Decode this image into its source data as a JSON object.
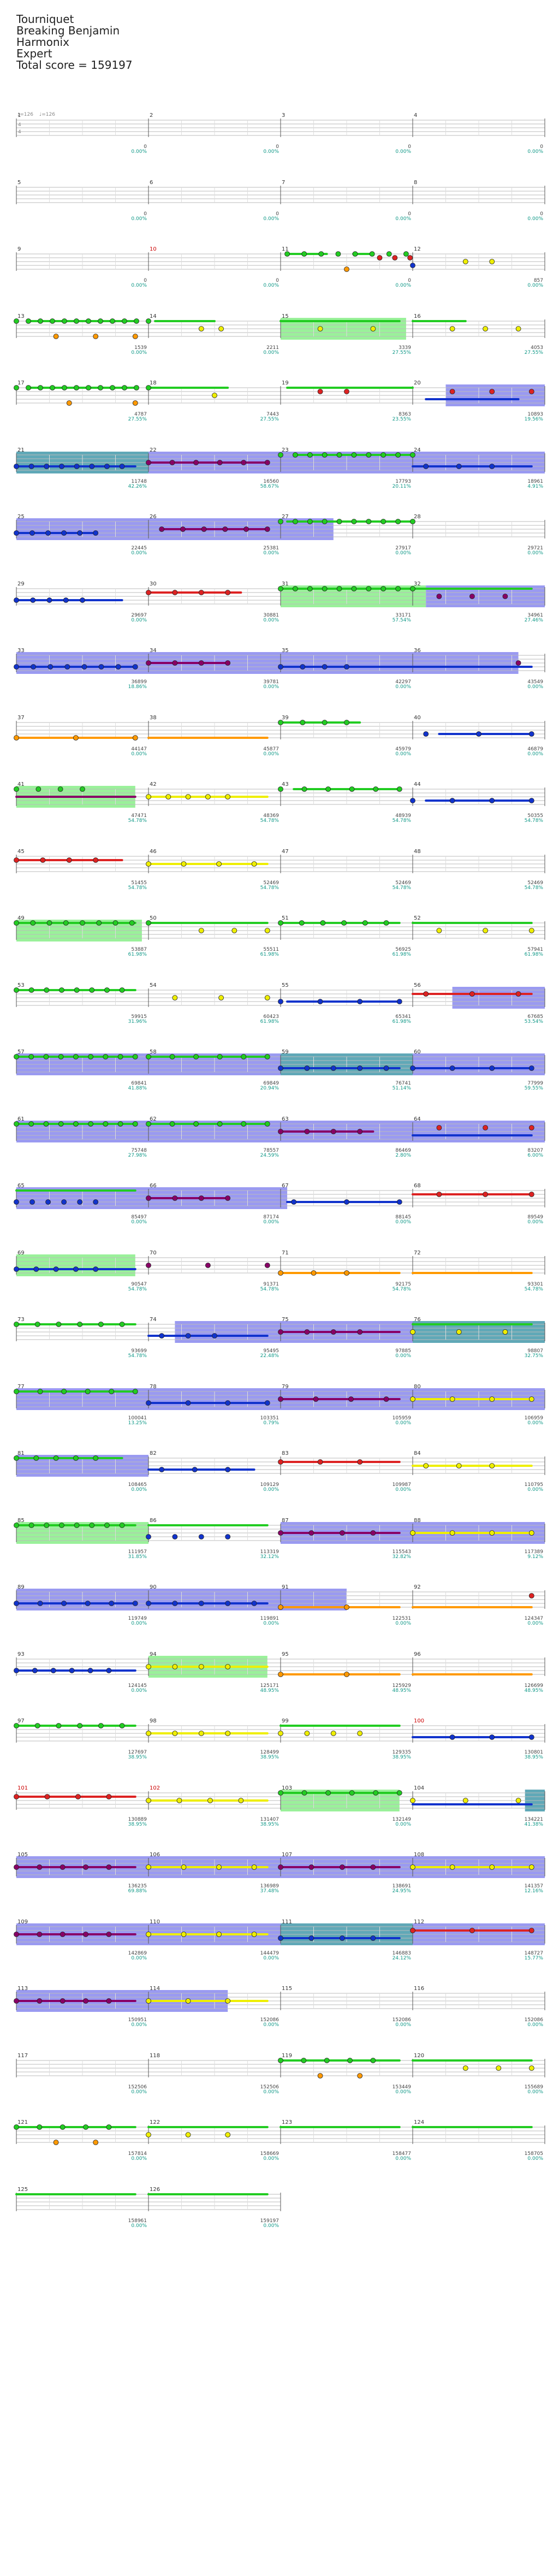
{
  "header": {
    "song_title": "Tourniquet",
    "artist": "Breaking Benjamin",
    "instrument": "Harmonix",
    "difficulty": "Expert",
    "total_score": "Total score = 159197"
  },
  "intro": {
    "time_sig_top": "4",
    "time_sig_bottom": "4",
    "tempo_1": "♩=126",
    "tempo_2": "♩=126"
  },
  "colors": {
    "green": "#22cc22",
    "red": "#dd2222",
    "yellow": "#eeee00",
    "blue": "#1133cc",
    "orange": "#ff9900",
    "purple": "#880066",
    "sp_blue": "#8888ee",
    "sp_green": "#88ee88",
    "sp_overlap": "#4499aa",
    "score_pct": "#119988"
  },
  "tracks": [
    {
      "m": [
        {
          "n": "1",
          "s": "0",
          "p": "0.00%"
        },
        {
          "n": "2",
          "s": "0",
          "p": "0.00%"
        },
        {
          "n": "3",
          "s": "0",
          "p": "0.00%"
        },
        {
          "n": "4",
          "s": "0",
          "p": "0.00%"
        }
      ],
      "end": "0",
      "pend": "0.00%"
    },
    {
      "m": [
        {
          "n": "5",
          "s": "0",
          "p": "0.00%"
        },
        {
          "n": "6",
          "s": "0",
          "p": "0.00%"
        },
        {
          "n": "7",
          "s": "0",
          "p": "0.00%"
        },
        {
          "n": "8",
          "s": "0",
          "p": "0.00%"
        }
      ],
      "end": "0",
      "pend": "0.00%"
    },
    {
      "m": [
        {
          "n": "9",
          "s": "0",
          "p": "0.00%"
        },
        {
          "n": "10",
          "s": "0",
          "p": "0.00%",
          "red": true
        },
        {
          "n": "11",
          "s": "0",
          "p": "0.00%"
        },
        {
          "n": "12",
          "s": "234",
          "p": "0.00%"
        }
      ],
      "end": "857",
      "pend": "0.00%"
    },
    {
      "m": [
        {
          "n": "13",
          "s": "1539",
          "p": "0.00%"
        },
        {
          "n": "14",
          "s": "2211",
          "p": "0.00%"
        },
        {
          "n": "15",
          "s": "3339",
          "p": "27.55%"
        },
        {
          "n": "16",
          "s": "4053",
          "p": "27.55%"
        }
      ],
      "end": "4053",
      "pend": "27.55%"
    },
    {
      "m": [
        {
          "n": "17",
          "s": "4787",
          "p": "27.55%"
        },
        {
          "n": "18",
          "s": "7443",
          "p": "27.55%"
        },
        {
          "n": "19",
          "s": "8363",
          "p": "23.55%"
        },
        {
          "n": "20",
          "s": "10893",
          "p": "19.56%"
        }
      ],
      "end": "10893",
      "pend": "19.56%"
    },
    {
      "m": [
        {
          "n": "21",
          "s": "11748",
          "p": "42.26%"
        },
        {
          "n": "22",
          "s": "16560",
          "p": "58.67%"
        },
        {
          "n": "23",
          "s": "17793",
          "p": "20.11%"
        },
        {
          "n": "24",
          "s": "18961",
          "p": "4.91%"
        }
      ],
      "end": "18961",
      "pend": "4.91%"
    },
    {
      "m": [
        {
          "n": "25",
          "s": "22445",
          "p": "0.00%"
        },
        {
          "n": "26",
          "s": "25381",
          "p": "0.00%"
        },
        {
          "n": "27",
          "s": "27917",
          "p": "0.00%"
        },
        {
          "n": "28",
          "s": "29721",
          "p": "0.00%"
        }
      ],
      "end": "29721",
      "pend": "0.00%"
    },
    {
      "m": [
        {
          "n": "29",
          "s": "29697",
          "p": "0.00%"
        },
        {
          "n": "30",
          "s": "30881",
          "p": "0.00%"
        },
        {
          "n": "31",
          "s": "33171",
          "p": "57.54%"
        },
        {
          "n": "32",
          "s": "34961",
          "p": "27.46%"
        }
      ],
      "end": "34961",
      "pend": "27.46%"
    },
    {
      "m": [
        {
          "n": "33",
          "s": "36899",
          "p": "18.86%"
        },
        {
          "n": "34",
          "s": "39781",
          "p": "0.00%"
        },
        {
          "n": "35",
          "s": "42297",
          "p": "0.00%"
        },
        {
          "n": "36",
          "s": "43549",
          "p": "0.00%"
        }
      ],
      "end": "43549",
      "pend": "0.00%"
    },
    {
      "m": [
        {
          "n": "37",
          "s": "44147",
          "p": "0.00%"
        },
        {
          "n": "38",
          "s": "45877",
          "p": "0.00%"
        },
        {
          "n": "39",
          "s": "45979",
          "p": "0.00%"
        },
        {
          "n": "40",
          "s": "46879",
          "p": "0.00%"
        }
      ],
      "end": "46879",
      "pend": "0.00%"
    },
    {
      "m": [
        {
          "n": "41",
          "s": "47471",
          "p": "54.78%"
        },
        {
          "n": "42",
          "s": "48369",
          "p": "54.78%"
        },
        {
          "n": "43",
          "s": "48939",
          "p": "54.78%"
        },
        {
          "n": "44",
          "s": "50355",
          "p": "54.78%"
        }
      ],
      "end": "50355",
      "pend": "54.78%"
    },
    {
      "m": [
        {
          "n": "45",
          "s": "51455",
          "p": "54.78%"
        },
        {
          "n": "46",
          "s": "52469",
          "p": "54.78%"
        },
        {
          "n": "47",
          "s": "52469",
          "p": "54.78%"
        },
        {
          "n": "48",
          "s": "52469",
          "p": "54.78%"
        }
      ],
      "end": "52469",
      "pend": "54.78%"
    },
    {
      "m": [
        {
          "n": "49",
          "s": "53887",
          "p": "61.98%"
        },
        {
          "n": "50",
          "s": "55511",
          "p": "61.98%"
        },
        {
          "n": "51",
          "s": "56925",
          "p": "61.98%"
        },
        {
          "n": "52",
          "s": "57941",
          "p": "61.98%"
        }
      ],
      "end": "57941",
      "pend": "61.98%"
    },
    {
      "m": [
        {
          "n": "53",
          "s": "59915",
          "p": "31.96%"
        },
        {
          "n": "54",
          "s": "60423",
          "p": "61.98%"
        },
        {
          "n": "55",
          "s": "65341",
          "p": "61.98%"
        },
        {
          "n": "56",
          "s": "67685",
          "p": "53.54%"
        }
      ],
      "end": "67685",
      "pend": "53.54%"
    },
    {
      "m": [
        {
          "n": "57",
          "s": "69841",
          "p": "41.88%"
        },
        {
          "n": "58",
          "s": "69849",
          "p": "20.94%"
        },
        {
          "n": "59",
          "s": "76741",
          "p": "51.14%"
        },
        {
          "n": "60",
          "s": "77999",
          "p": "59.55%"
        }
      ],
      "end": "77999",
      "pend": "59.55%"
    },
    {
      "m": [
        {
          "n": "61",
          "s": "75748",
          "p": "27.98%"
        },
        {
          "n": "62",
          "s": "78557",
          "p": "24.59%"
        },
        {
          "n": "63",
          "s": "86469",
          "p": "2.80%"
        },
        {
          "n": "64",
          "s": "83207",
          "p": "6.00%"
        }
      ],
      "end": "83207",
      "pend": "6.00%"
    },
    {
      "m": [
        {
          "n": "65",
          "s": "85497",
          "p": "0.00%"
        },
        {
          "n": "66",
          "s": "87174",
          "p": "0.00%"
        },
        {
          "n": "67",
          "s": "88145",
          "p": "0.00%"
        },
        {
          "n": "68",
          "s": "89549",
          "p": "0.00%"
        }
      ],
      "end": "89549",
      "pend": "0.00%"
    },
    {
      "m": [
        {
          "n": "69",
          "s": "90547",
          "p": "54.78%"
        },
        {
          "n": "70",
          "s": "91371",
          "p": "54.78%"
        },
        {
          "n": "71",
          "s": "92175",
          "p": "54.78%"
        },
        {
          "n": "72",
          "s": "93301",
          "p": "54.78%"
        }
      ],
      "end": "93301",
      "pend": "54.78%"
    },
    {
      "m": [
        {
          "n": "73",
          "s": "93699",
          "p": "54.78%"
        },
        {
          "n": "74",
          "s": "95495",
          "p": "22.48%"
        },
        {
          "n": "75",
          "s": "97885",
          "p": "0.00%"
        },
        {
          "n": "76",
          "s": "98807",
          "p": "32.75%"
        }
      ],
      "end": "98807",
      "pend": "32.75%"
    },
    {
      "m": [
        {
          "n": "77",
          "s": "100041",
          "p": "13.25%"
        },
        {
          "n": "78",
          "s": "103351",
          "p": "0.79%"
        },
        {
          "n": "79",
          "s": "105959",
          "p": "0.00%"
        },
        {
          "n": "80",
          "s": "106959",
          "p": "0.00%"
        }
      ],
      "end": "106959",
      "pend": "0.00%"
    },
    {
      "m": [
        {
          "n": "81",
          "s": "108465",
          "p": "0.00%"
        },
        {
          "n": "82",
          "s": "109129",
          "p": "0.00%"
        },
        {
          "n": "83",
          "s": "109987",
          "p": "0.00%"
        },
        {
          "n": "84",
          "s": "110795",
          "p": "0.00%"
        }
      ],
      "end": "110795",
      "pend": "0.00%"
    },
    {
      "m": [
        {
          "n": "85",
          "s": "111957",
          "p": "31.85%"
        },
        {
          "n": "86",
          "s": "113319",
          "p": "32.12%"
        },
        {
          "n": "87",
          "s": "115543",
          "p": "32.82%"
        },
        {
          "n": "88",
          "s": "117389",
          "p": "9.12%"
        }
      ],
      "end": "117389",
      "pend": "9.12%"
    },
    {
      "m": [
        {
          "n": "89",
          "s": "119749",
          "p": "0.00%"
        },
        {
          "n": "90",
          "s": "119891",
          "p": "0.00%"
        },
        {
          "n": "91",
          "s": "122531",
          "p": "0.00%"
        },
        {
          "n": "92",
          "s": "124347",
          "p": "0.00%"
        }
      ],
      "end": "124347",
      "pend": "0.00%"
    },
    {
      "m": [
        {
          "n": "93",
          "s": "124145",
          "p": "0.00%"
        },
        {
          "n": "94",
          "s": "125171",
          "p": "48.95%"
        },
        {
          "n": "95",
          "s": "125929",
          "p": "48.95%"
        },
        {
          "n": "96",
          "s": "126699",
          "p": "48.95%"
        }
      ],
      "end": "126699",
      "pend": "48.95%"
    },
    {
      "m": [
        {
          "n": "97",
          "s": "127697",
          "p": "38.95%"
        },
        {
          "n": "98",
          "s": "128499",
          "p": "38.95%"
        },
        {
          "n": "99",
          "s": "129335",
          "p": "38.95%"
        },
        {
          "n": "100",
          "s": "130801",
          "p": "38.95%",
          "red": true
        }
      ],
      "end": "130801",
      "pend": "38.95%"
    },
    {
      "m": [
        {
          "n": "101",
          "s": "130889",
          "p": "38.95%",
          "red": true
        },
        {
          "n": "102",
          "s": "131407",
          "p": "38.95%",
          "red": true
        },
        {
          "n": "103",
          "s": "132149",
          "p": "0.00%"
        },
        {
          "n": "104",
          "s": "134221",
          "p": "41.38%"
        }
      ],
      "end": "134221",
      "pend": "41.38%"
    },
    {
      "m": [
        {
          "n": "105",
          "s": "136235",
          "p": "69.88%"
        },
        {
          "n": "106",
          "s": "136989",
          "p": "37.48%"
        },
        {
          "n": "107",
          "s": "138691",
          "p": "24.95%"
        },
        {
          "n": "108",
          "s": "141357",
          "p": "12.16%"
        }
      ],
      "end": "141357",
      "pend": "12.16%"
    },
    {
      "m": [
        {
          "n": "109",
          "s": "142869",
          "p": "0.00%"
        },
        {
          "n": "110",
          "s": "144479",
          "p": "0.00%"
        },
        {
          "n": "111",
          "s": "146883",
          "p": "24.12%"
        },
        {
          "n": "112",
          "s": "148727",
          "p": "15.77%"
        }
      ],
      "end": "148727",
      "pend": "15.77%"
    },
    {
      "m": [
        {
          "n": "113",
          "s": "150951",
          "p": "0.00%"
        },
        {
          "n": "114",
          "s": "152086",
          "p": "0.00%"
        },
        {
          "n": "115",
          "s": "152086",
          "p": "0.00%"
        },
        {
          "n": "116",
          "s": "152086",
          "p": "0.00%"
        }
      ],
      "end": "152086",
      "pend": "0.00%"
    },
    {
      "m": [
        {
          "n": "117",
          "s": "152506",
          "p": "0.00%"
        },
        {
          "n": "118",
          "s": "152506",
          "p": "0.00%"
        },
        {
          "n": "119",
          "s": "153449",
          "p": "0.00%"
        },
        {
          "n": "120",
          "s": "155689",
          "p": "0.00%"
        }
      ],
      "end": "155689",
      "pend": "0.00%"
    },
    {
      "m": [
        {
          "n": "121",
          "s": "157814",
          "p": "0.00%"
        },
        {
          "n": "122",
          "s": "158669",
          "p": "0.00%"
        },
        {
          "n": "123",
          "s": "158477",
          "p": "0.00%"
        },
        {
          "n": "124",
          "s": "158705",
          "p": "0.00%"
        }
      ],
      "end": "158705",
      "pend": "0.00%"
    },
    {
      "m": [
        {
          "n": "125",
          "s": "158961",
          "p": "0.00%"
        },
        {
          "n": "126",
          "s": "159197",
          "p": "0.00%"
        }
      ],
      "end": "159197",
      "pend": "0.00%"
    }
  ]
}
